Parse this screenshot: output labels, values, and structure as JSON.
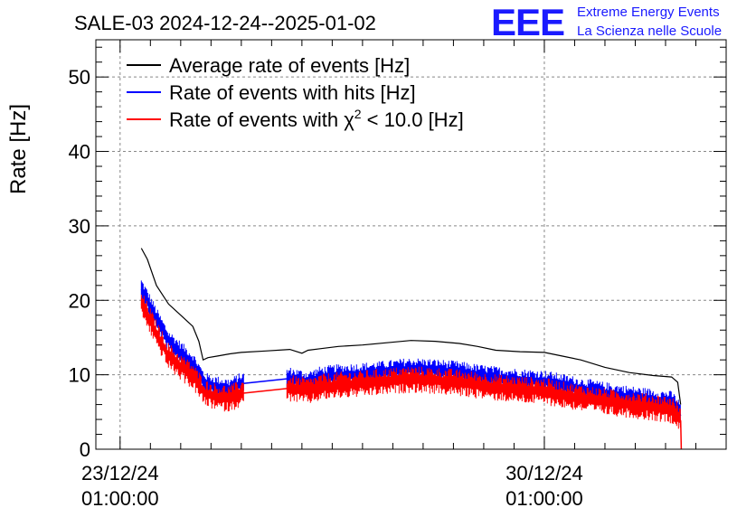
{
  "header": {
    "title": "SALE-03 2024-12-24--2025-01-02",
    "logo_text": "EEE",
    "logo_line1": "Extreme Energy Events",
    "logo_line2": "La Scienza nelle Scuole"
  },
  "colors": {
    "average": "#000000",
    "hits": "#0000ff",
    "chi2": "#ff0000",
    "logo": "#1a1aff",
    "grid": "#888888"
  },
  "chart_data": {
    "type": "line",
    "title": "SALE-03 2024-12-24--2025-01-02",
    "ylabel": "Rate [Hz]",
    "xlabel": "",
    "ylim": [
      0,
      55
    ],
    "xlim_days": [
      -0.4,
      10.0
    ],
    "yticks": [
      0,
      10,
      20,
      30,
      40,
      50
    ],
    "xticks": [
      {
        "day": 0,
        "date": "23/12/24",
        "time": "01:00:00"
      },
      {
        "day": 7,
        "date": "30/12/24",
        "time": "01:00:00"
      }
    ],
    "grid": true,
    "legend_position": "top-left",
    "legend": [
      {
        "key": "average",
        "prefix": "Average rate of events [Hz]",
        "sup": "",
        "suffix": ""
      },
      {
        "key": "hits",
        "prefix": "Rate of events with hits [Hz]",
        "sup": "",
        "suffix": ""
      },
      {
        "key": "chi2",
        "prefix": "Rate of events with χ",
        "sup": "2",
        "suffix": " < 10.0 [Hz]"
      }
    ],
    "x_unit": "days since 23/12/24 01:00:00",
    "series": [
      {
        "name": "Average rate of events [Hz]",
        "key": "average",
        "x": [
          0.35,
          0.45,
          0.6,
          0.8,
          1.0,
          1.2,
          1.3,
          1.37,
          1.45,
          1.6,
          1.8,
          2.0,
          2.4,
          2.8,
          3.0,
          3.1,
          3.3,
          3.6,
          4.0,
          4.4,
          4.8,
          5.2,
          5.6,
          5.9,
          6.2,
          6.6,
          7.0,
          7.3,
          7.6,
          8.0,
          8.4,
          8.8,
          9.1,
          9.2,
          9.25
        ],
        "y": [
          27.0,
          25.5,
          22.0,
          19.5,
          18.0,
          16.5,
          14.5,
          12.0,
          12.3,
          12.5,
          12.8,
          13.0,
          13.2,
          13.4,
          12.9,
          13.3,
          13.5,
          13.8,
          14.0,
          14.3,
          14.6,
          14.5,
          14.2,
          13.8,
          13.3,
          13.1,
          13.0,
          12.5,
          12.0,
          11.0,
          10.3,
          9.9,
          9.7,
          9.0,
          6.0
        ]
      },
      {
        "name": "Rate of events with hits [Hz]",
        "key": "hits",
        "x": [
          0.35,
          0.45,
          0.6,
          0.8,
          1.0,
          1.2,
          1.4,
          1.6,
          1.8,
          2.0,
          2.8,
          3.1,
          3.3,
          3.6,
          4.0,
          4.4,
          4.8,
          5.2,
          5.6,
          5.9,
          6.2,
          6.6,
          7.0,
          7.3,
          7.6,
          8.0,
          8.4,
          8.8,
          9.1,
          9.2,
          9.25
        ],
        "y": [
          21.5,
          20.0,
          17.5,
          14.5,
          13.0,
          11.5,
          8.8,
          8.3,
          8.0,
          8.8,
          9.5,
          9.0,
          9.6,
          9.9,
          10.1,
          10.4,
          10.8,
          10.6,
          10.3,
          9.9,
          9.6,
          9.3,
          9.1,
          8.6,
          8.1,
          7.5,
          7.0,
          6.6,
          6.3,
          5.5,
          4.5
        ]
      },
      {
        "name": "Rate of events with χ2 < 10.0 [Hz]",
        "key": "chi2",
        "x": [
          0.35,
          0.45,
          0.6,
          0.8,
          1.0,
          1.2,
          1.4,
          1.6,
          1.8,
          2.0,
          2.8,
          3.1,
          3.3,
          3.6,
          4.0,
          4.4,
          4.8,
          5.2,
          5.6,
          5.9,
          6.2,
          6.6,
          7.0,
          7.3,
          7.6,
          8.0,
          8.4,
          8.8,
          9.1,
          9.2,
          9.25,
          9.26
        ],
        "y": [
          19.5,
          18.0,
          15.5,
          12.5,
          11.0,
          9.8,
          7.5,
          7.0,
          6.8,
          7.5,
          8.2,
          7.8,
          8.3,
          8.6,
          8.8,
          9.1,
          9.4,
          9.2,
          8.9,
          8.6,
          8.3,
          8.0,
          7.8,
          7.3,
          6.9,
          6.4,
          6.0,
          5.6,
          5.3,
          4.6,
          3.8,
          0.0
        ]
      }
    ]
  }
}
